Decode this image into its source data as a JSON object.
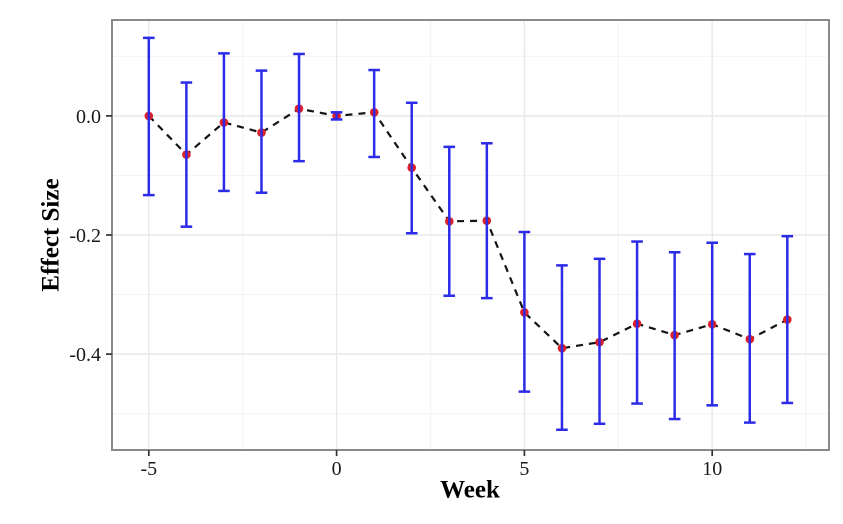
{
  "chart_data": {
    "type": "scatter",
    "subtype": "event-study point estimates with confidence-interval error bars and dashed connector line",
    "title": "",
    "xlabel": "Week",
    "ylabel": "Effect Size",
    "x": [
      -5,
      -4,
      -3,
      -2,
      -1,
      0,
      1,
      2,
      3,
      4,
      5,
      6,
      7,
      8,
      9,
      10,
      11,
      12
    ],
    "series": [
      {
        "name": "estimate",
        "values": [
          0.0,
          -0.065,
          -0.011,
          -0.028,
          0.012,
          0.0,
          0.006,
          -0.087,
          -0.177,
          -0.176,
          -0.33,
          -0.39,
          -0.38,
          -0.349,
          -0.368,
          -0.35,
          -0.375,
          -0.342
        ]
      },
      {
        "name": "ci_lower",
        "values": [
          -0.133,
          -0.186,
          -0.126,
          -0.129,
          -0.076,
          -0.006,
          -0.069,
          -0.197,
          -0.302,
          -0.306,
          -0.463,
          -0.527,
          -0.517,
          -0.483,
          -0.509,
          -0.486,
          -0.515,
          -0.482
        ]
      },
      {
        "name": "ci_upper",
        "values": [
          0.131,
          0.056,
          0.105,
          0.076,
          0.104,
          0.006,
          0.077,
          0.022,
          -0.052,
          -0.046,
          -0.195,
          -0.251,
          -0.24,
          -0.211,
          -0.229,
          -0.213,
          -0.232,
          -0.202
        ]
      }
    ],
    "xlim": [
      -5.98,
      13.11
    ],
    "ylim": [
      -0.561,
      0.161
    ],
    "x_ticks": {
      "major": [
        -5,
        0,
        5,
        10
      ],
      "labels": [
        "-5",
        "0",
        "5",
        "10"
      ],
      "minor": [
        -2.5,
        2.5,
        7.5,
        12.5
      ]
    },
    "y_ticks": {
      "major": [
        0,
        -0.2,
        -0.4
      ],
      "labels": [
        "0.0",
        "-0.2",
        "-0.4"
      ],
      "minor": [
        0.1,
        -0.1,
        -0.3,
        -0.5
      ]
    },
    "grid": "major+minor",
    "legend": "none",
    "line_style": "dashed",
    "colors": {
      "point": "#DC1F28",
      "errorbar": "#2B2BE8",
      "line": "#141414",
      "panel_border": "#8A8A8A",
      "grid_major": "#E8E8E8",
      "grid_minor": "#F4F4F4",
      "background": "#FFFFFF",
      "tick_label": "#1A1A1A",
      "tick_mark": "#333333"
    }
  }
}
